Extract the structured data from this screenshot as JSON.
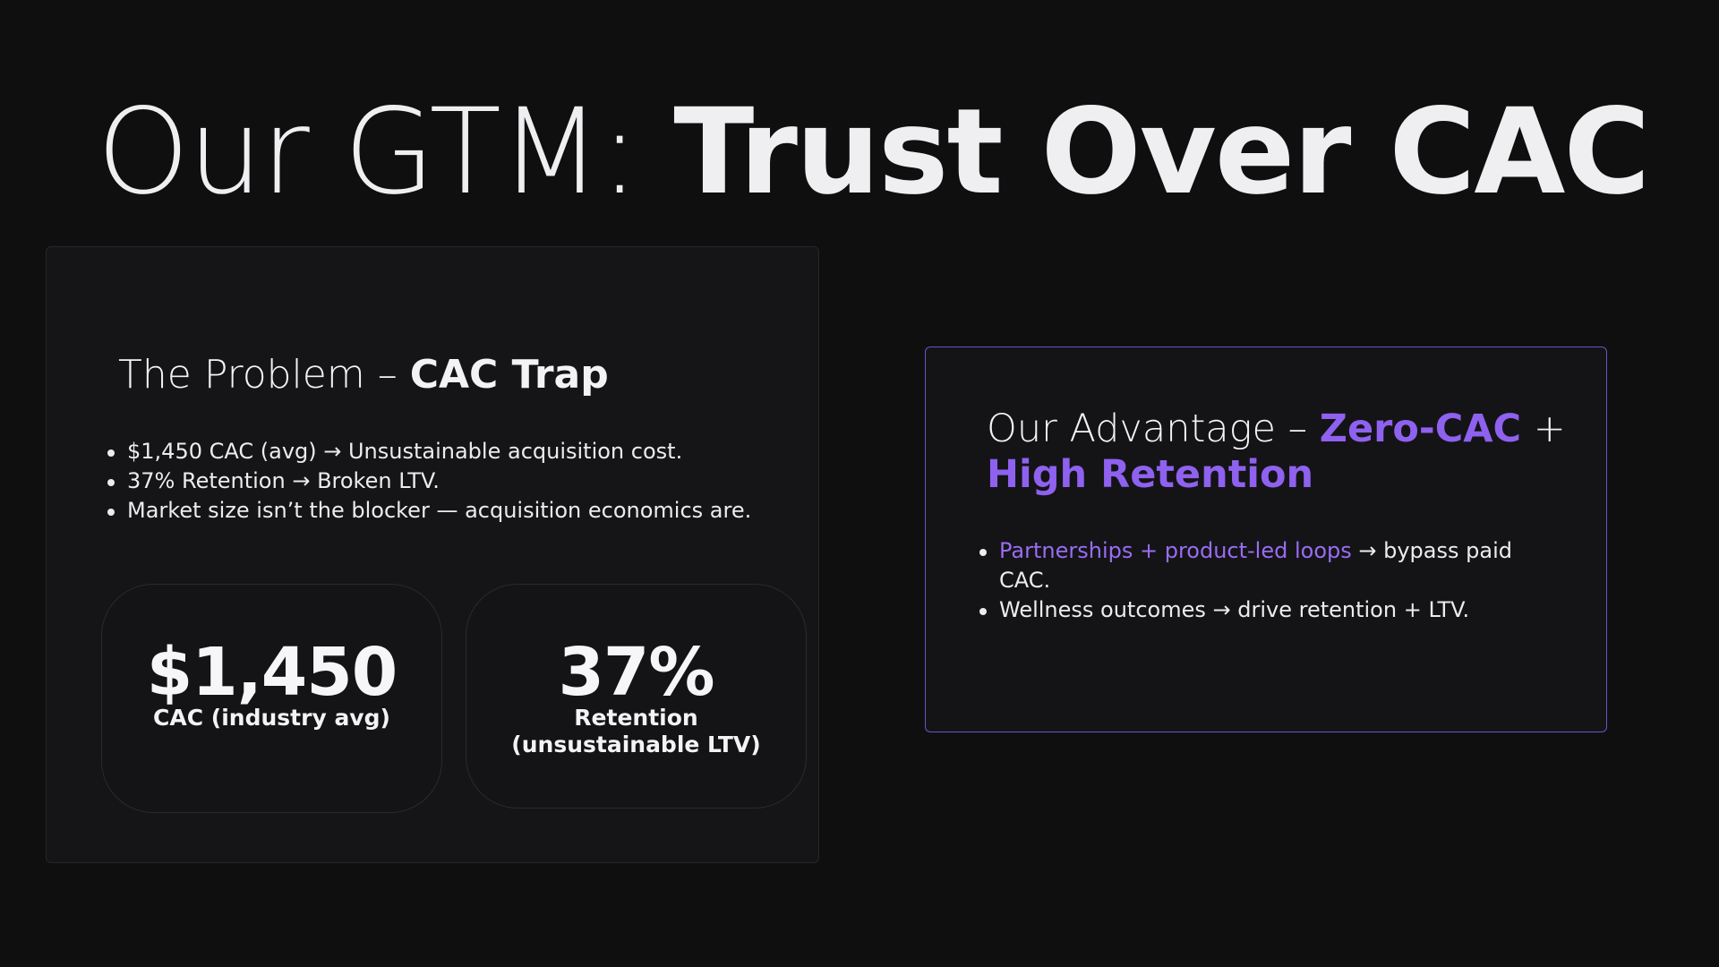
{
  "colors": {
    "background": "#0f0f10",
    "accent": "#8f61ef",
    "panel_border_accent": "#6f4fc6",
    "text": "#f1f1f3"
  },
  "title": {
    "light": "Our GTM: ",
    "bold": "Trust Over CAC"
  },
  "problem": {
    "heading_light": "The Problem – ",
    "heading_bold": "CAC Trap",
    "bullets": [
      "$1,450 CAC (avg) → Unsustainable acquisition cost.",
      "37% Retention → Broken LTV.",
      "Market size isn’t the blocker — acquisition economics are."
    ],
    "stats": [
      {
        "value": "$1,450",
        "label": "CAC (industry avg)"
      },
      {
        "value": "37%",
        "label": "Retention\n(unsustainable LTV)"
      }
    ]
  },
  "advantage": {
    "heading_light": "Our Advantage – ",
    "heading_accent_1": "Zero-CAC",
    "heading_plus": " + ",
    "heading_accent_2": "High Retention",
    "bullets": [
      {
        "accent": "Partnerships + product-led loops",
        "rest": " → bypass paid CAC."
      },
      {
        "accent": "",
        "rest": "Wellness outcomes → drive retention + LTV."
      }
    ]
  }
}
